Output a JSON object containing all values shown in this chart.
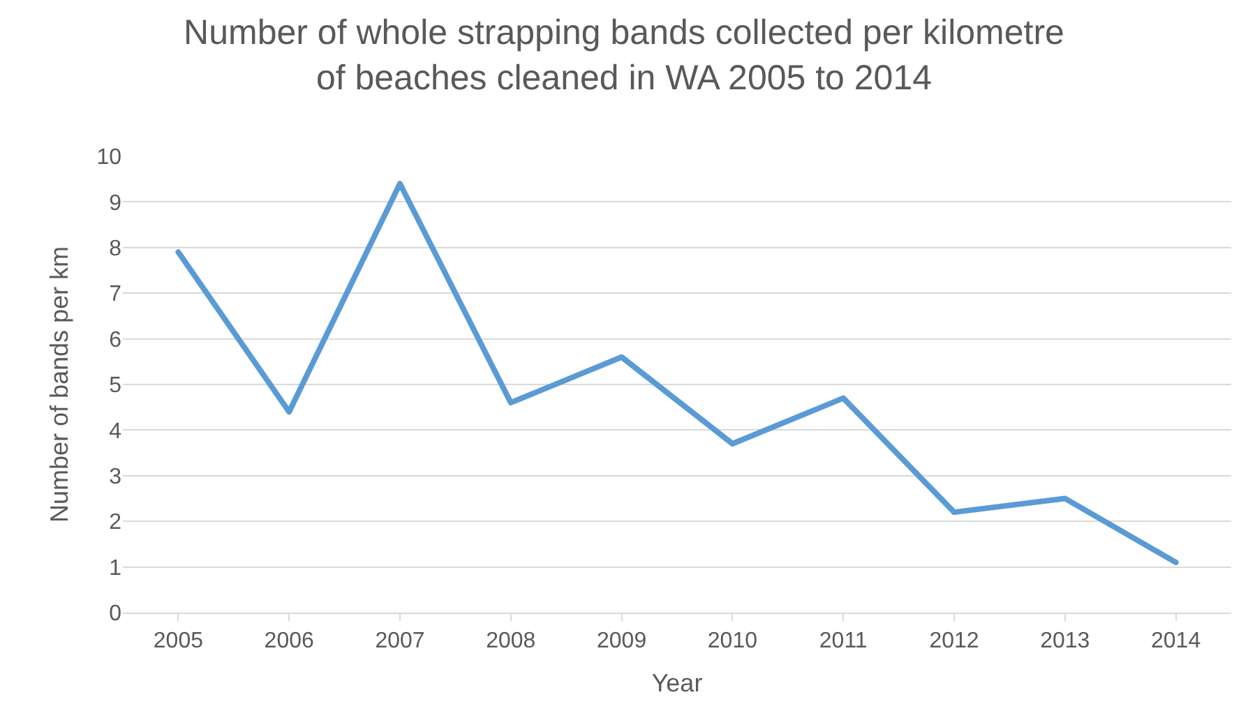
{
  "chart_data": {
    "type": "line",
    "title": "Number of whole strapping bands collected per kilometre\nof beaches cleaned in WA 2005 to 2014",
    "xlabel": "Year",
    "ylabel": "Number of bands per km",
    "categories": [
      "2005",
      "2006",
      "2007",
      "2008",
      "2009",
      "2010",
      "2011",
      "2012",
      "2013",
      "2014"
    ],
    "series": [
      {
        "color": "#5b9bd5",
        "values": [
          7.9,
          4.4,
          9.4,
          4.6,
          5.6,
          3.7,
          4.7,
          2.2,
          2.5,
          1.1
        ]
      }
    ],
    "ylim": [
      0,
      10
    ],
    "yticks": [
      0,
      1,
      2,
      3,
      4,
      5,
      6,
      7,
      8,
      9,
      10
    ],
    "grid": "y",
    "marker": "none",
    "line_style": "solid"
  }
}
